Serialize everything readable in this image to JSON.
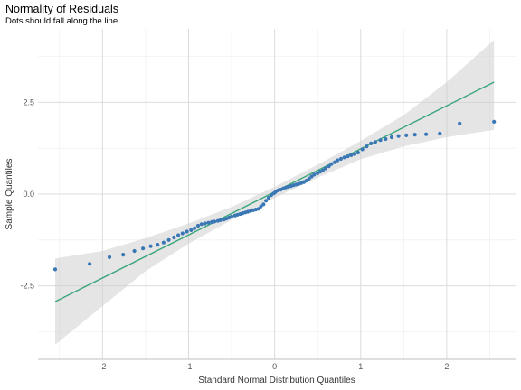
{
  "chart_data": {
    "type": "scatter",
    "title": "Normality of Residuals",
    "subtitle": "Dots should fall along the line",
    "xlabel": "Standard Normal Distribution Quantiles",
    "ylabel": "Sample Quantiles",
    "xlim": [
      -2.75,
      2.8
    ],
    "ylim": [
      -4.5,
      4.5
    ],
    "xticks": [
      -2,
      -1,
      0,
      1,
      2
    ],
    "yticks": [
      -2.5,
      0.0,
      2.5
    ],
    "xtick_labels": [
      "-2",
      "-1",
      "0",
      "1",
      "2"
    ],
    "ytick_labels": [
      "-2.5",
      "0.0",
      "2.5"
    ],
    "grid": true,
    "colors": {
      "points": "#3a77b5",
      "line": "#3aa57a",
      "band": "#cfcfcf"
    },
    "reference_line": {
      "x": [
        -2.55,
        2.55
      ],
      "y": [
        -2.93,
        3.05
      ]
    },
    "confidence_band": {
      "x": [
        -2.55,
        -2.0,
        -1.5,
        -1.0,
        -0.5,
        0.0,
        0.5,
        1.0,
        1.5,
        2.0,
        2.55
      ],
      "lower": [
        -4.1,
        -3.05,
        -2.1,
        -1.35,
        -0.7,
        -0.1,
        0.45,
        0.95,
        1.3,
        1.55,
        1.75
      ],
      "upper": [
        -1.75,
        -1.55,
        -1.2,
        -0.8,
        -0.35,
        0.2,
        0.8,
        1.45,
        2.15,
        3.05,
        4.2
      ]
    },
    "series": [
      {
        "x": [
          -2.55,
          -2.15,
          -1.92,
          -1.76,
          -1.63,
          -1.53,
          -1.44,
          -1.36,
          -1.29,
          -1.23,
          -1.17,
          -1.12,
          -1.07,
          -1.02,
          -0.97,
          -0.93,
          -0.89,
          -0.85,
          -0.81,
          -0.77,
          -0.73,
          -0.7,
          -0.66,
          -0.63,
          -0.59,
          -0.56,
          -0.53,
          -0.5,
          -0.46,
          -0.43,
          -0.4,
          -0.37,
          -0.34,
          -0.31,
          -0.28,
          -0.25,
          -0.22,
          -0.19,
          -0.16,
          -0.13,
          -0.1,
          -0.07,
          -0.04,
          -0.01,
          0.01,
          0.04,
          0.07,
          0.1,
          0.13,
          0.16,
          0.19,
          0.22,
          0.25,
          0.28,
          0.31,
          0.34,
          0.37,
          0.4,
          0.43,
          0.46,
          0.5,
          0.53,
          0.56,
          0.59,
          0.63,
          0.66,
          0.7,
          0.73,
          0.77,
          0.81,
          0.85,
          0.89,
          0.93,
          0.97,
          1.02,
          1.07,
          1.12,
          1.17,
          1.23,
          1.29,
          1.36,
          1.44,
          1.53,
          1.63,
          1.76,
          1.92,
          2.15,
          2.55
        ],
        "y": [
          -2.05,
          -1.9,
          -1.72,
          -1.65,
          -1.55,
          -1.48,
          -1.42,
          -1.38,
          -1.32,
          -1.25,
          -1.18,
          -1.12,
          -1.07,
          -1.02,
          -0.98,
          -0.93,
          -0.86,
          -0.82,
          -0.8,
          -0.78,
          -0.76,
          -0.75,
          -0.73,
          -0.71,
          -0.69,
          -0.67,
          -0.64,
          -0.61,
          -0.58,
          -0.56,
          -0.54,
          -0.52,
          -0.5,
          -0.48,
          -0.46,
          -0.44,
          -0.42,
          -0.4,
          -0.34,
          -0.28,
          -0.18,
          -0.1,
          -0.03,
          0.02,
          0.06,
          0.1,
          0.12,
          0.15,
          0.18,
          0.2,
          0.22,
          0.24,
          0.26,
          0.28,
          0.3,
          0.33,
          0.37,
          0.42,
          0.48,
          0.53,
          0.57,
          0.61,
          0.65,
          0.7,
          0.76,
          0.82,
          0.87,
          0.92,
          0.96,
          1.0,
          1.03,
          1.06,
          1.09,
          1.13,
          1.22,
          1.3,
          1.38,
          1.42,
          1.47,
          1.5,
          1.55,
          1.58,
          1.6,
          1.62,
          1.63,
          1.65,
          1.92,
          1.97
        ]
      }
    ]
  }
}
